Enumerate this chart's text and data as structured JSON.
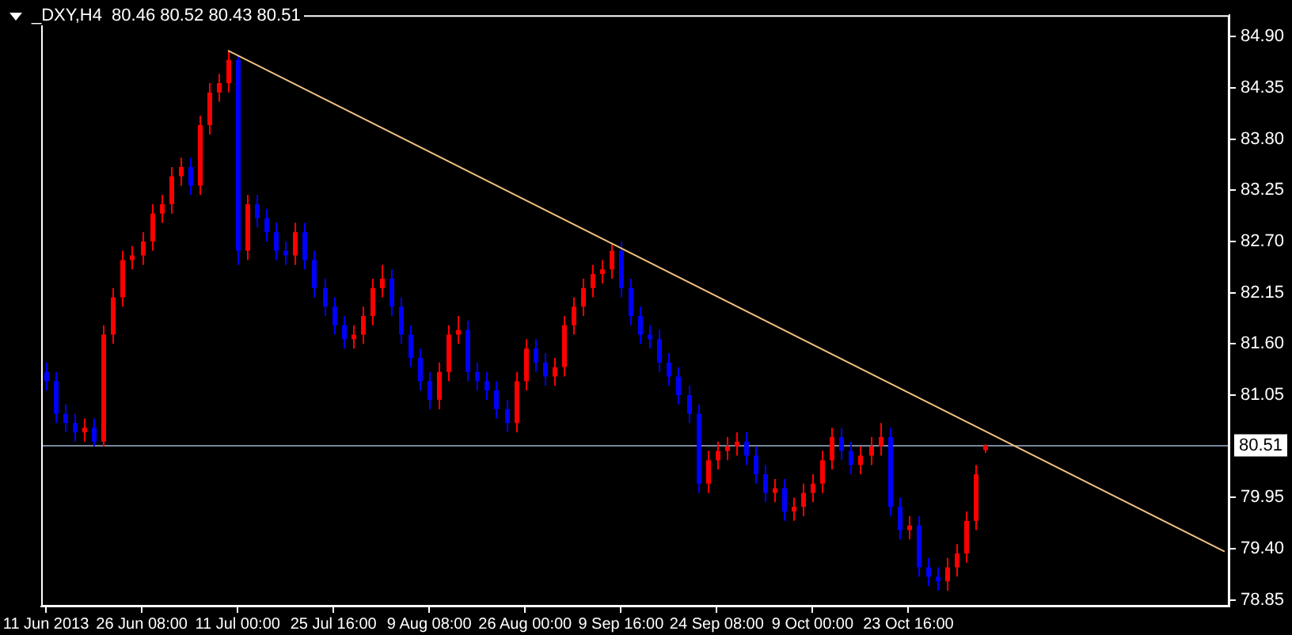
{
  "chart_data": {
    "type": "candlestick",
    "title": "_DXY,H4  80.46 80.52 80.43 80.51",
    "categories": [
      "11 Jun 2013",
      null,
      null,
      null,
      null,
      null,
      null,
      null,
      null,
      null,
      "26 Jun 08:00",
      null,
      null,
      null,
      null,
      null,
      null,
      null,
      null,
      null,
      "11 Jul 00:00",
      null,
      null,
      null,
      null,
      null,
      null,
      null,
      null,
      null,
      "25 Jul 16:00",
      null,
      null,
      null,
      null,
      null,
      null,
      null,
      null,
      null,
      "9 Aug 08:00",
      null,
      null,
      null,
      null,
      null,
      null,
      null,
      null,
      null,
      "26 Aug 00:00",
      null,
      null,
      null,
      null,
      null,
      null,
      null,
      null,
      null,
      "9 Sep 16:00",
      null,
      null,
      null,
      null,
      null,
      null,
      null,
      null,
      null,
      "24 Sep 08:00",
      null,
      null,
      null,
      null,
      null,
      null,
      null,
      null,
      null,
      "9 Oct 00:00",
      null,
      null,
      null,
      null,
      null,
      null,
      null,
      null,
      null,
      "23 Oct 16:00",
      null,
      null,
      null,
      null,
      null,
      null,
      null,
      null,
      null,
      null,
      null,
      null,
      null,
      null,
      null,
      null,
      null,
      null,
      null,
      null,
      null,
      null,
      null,
      null,
      null,
      null,
      null,
      null,
      null,
      null,
      null,
      null,
      null
    ],
    "ohlc": [
      [
        81.3,
        81.4,
        81.1,
        81.2
      ],
      [
        81.2,
        81.3,
        80.75,
        80.85
      ],
      [
        80.85,
        80.95,
        80.65,
        80.75
      ],
      [
        80.75,
        80.85,
        80.55,
        80.65
      ],
      [
        80.65,
        80.8,
        80.55,
        80.7
      ],
      [
        80.7,
        80.8,
        80.5,
        80.55
      ],
      [
        80.55,
        81.8,
        80.5,
        81.7
      ],
      [
        81.7,
        82.2,
        81.6,
        82.1
      ],
      [
        82.1,
        82.6,
        82.0,
        82.5
      ],
      [
        82.5,
        82.65,
        82.4,
        82.55
      ],
      [
        82.55,
        82.8,
        82.45,
        82.7
      ],
      [
        82.7,
        83.1,
        82.6,
        83.0
      ],
      [
        83.0,
        83.2,
        82.9,
        83.1
      ],
      [
        83.1,
        83.5,
        83.0,
        83.4
      ],
      [
        83.4,
        83.6,
        83.3,
        83.5
      ],
      [
        83.5,
        83.6,
        83.2,
        83.3
      ],
      [
        83.3,
        84.05,
        83.2,
        83.95
      ],
      [
        83.95,
        84.4,
        83.85,
        84.3
      ],
      [
        84.3,
        84.5,
        84.2,
        84.4
      ],
      [
        84.4,
        84.75,
        84.3,
        84.65
      ],
      [
        84.65,
        84.7,
        82.45,
        82.6
      ],
      [
        82.6,
        83.2,
        82.5,
        83.1
      ],
      [
        83.1,
        83.2,
        82.85,
        82.95
      ],
      [
        82.95,
        83.05,
        82.7,
        82.8
      ],
      [
        82.8,
        82.9,
        82.5,
        82.6
      ],
      [
        82.6,
        82.7,
        82.45,
        82.55
      ],
      [
        82.55,
        82.9,
        82.45,
        82.8
      ],
      [
        82.8,
        82.9,
        82.4,
        82.5
      ],
      [
        82.5,
        82.6,
        82.1,
        82.2
      ],
      [
        82.2,
        82.3,
        81.9,
        82.0
      ],
      [
        82.0,
        82.1,
        81.7,
        81.8
      ],
      [
        81.8,
        81.9,
        81.55,
        81.65
      ],
      [
        81.65,
        81.8,
        81.55,
        81.7
      ],
      [
        81.7,
        82.0,
        81.6,
        81.9
      ],
      [
        81.9,
        82.3,
        81.8,
        82.2
      ],
      [
        82.2,
        82.45,
        82.1,
        82.3
      ],
      [
        82.3,
        82.4,
        81.9,
        82.0
      ],
      [
        82.0,
        82.1,
        81.6,
        81.7
      ],
      [
        81.7,
        81.8,
        81.35,
        81.45
      ],
      [
        81.45,
        81.55,
        81.1,
        81.2
      ],
      [
        81.2,
        81.3,
        80.9,
        81.0
      ],
      [
        81.0,
        81.4,
        80.9,
        81.3
      ],
      [
        81.3,
        81.8,
        81.2,
        81.7
      ],
      [
        81.7,
        81.9,
        81.6,
        81.75
      ],
      [
        81.75,
        81.85,
        81.2,
        81.3
      ],
      [
        81.3,
        81.4,
        81.1,
        81.2
      ],
      [
        81.2,
        81.3,
        81.0,
        81.1
      ],
      [
        81.1,
        81.2,
        80.8,
        80.9
      ],
      [
        80.9,
        81.0,
        80.65,
        80.75
      ],
      [
        80.75,
        81.3,
        80.65,
        81.2
      ],
      [
        81.2,
        81.65,
        81.1,
        81.55
      ],
      [
        81.55,
        81.65,
        81.3,
        81.4
      ],
      [
        81.4,
        81.5,
        81.15,
        81.25
      ],
      [
        81.25,
        81.45,
        81.15,
        81.35
      ],
      [
        81.35,
        81.9,
        81.25,
        81.8
      ],
      [
        81.8,
        82.1,
        81.7,
        82.0
      ],
      [
        82.0,
        82.3,
        81.9,
        82.2
      ],
      [
        82.2,
        82.45,
        82.1,
        82.35
      ],
      [
        82.35,
        82.5,
        82.25,
        82.4
      ],
      [
        82.4,
        82.67,
        82.3,
        82.6
      ],
      [
        82.6,
        82.7,
        82.1,
        82.2
      ],
      [
        82.2,
        82.3,
        81.8,
        81.9
      ],
      [
        81.9,
        82.0,
        81.6,
        81.7
      ],
      [
        81.7,
        81.8,
        81.55,
        81.65
      ],
      [
        81.65,
        81.75,
        81.3,
        81.4
      ],
      [
        81.4,
        81.5,
        81.15,
        81.25
      ],
      [
        81.25,
        81.35,
        80.95,
        81.05
      ],
      [
        81.05,
        81.15,
        80.75,
        80.85
      ],
      [
        80.85,
        80.95,
        80.0,
        80.1
      ],
      [
        80.1,
        80.45,
        80.0,
        80.35
      ],
      [
        80.35,
        80.55,
        80.25,
        80.45
      ],
      [
        80.45,
        80.6,
        80.35,
        80.5
      ],
      [
        80.5,
        80.65,
        80.4,
        80.55
      ],
      [
        80.55,
        80.65,
        80.3,
        80.4
      ],
      [
        80.4,
        80.5,
        80.1,
        80.2
      ],
      [
        80.2,
        80.3,
        79.9,
        80.0
      ],
      [
        80.0,
        80.15,
        79.9,
        80.05
      ],
      [
        80.05,
        80.15,
        79.7,
        79.8
      ],
      [
        79.8,
        79.95,
        79.7,
        79.85
      ],
      [
        79.85,
        80.1,
        79.75,
        80.0
      ],
      [
        80.0,
        80.2,
        79.9,
        80.1
      ],
      [
        80.1,
        80.45,
        80.0,
        80.35
      ],
      [
        80.35,
        80.7,
        80.25,
        80.6
      ],
      [
        80.6,
        80.7,
        80.35,
        80.45
      ],
      [
        80.45,
        80.55,
        80.2,
        80.3
      ],
      [
        80.3,
        80.5,
        80.2,
        80.4
      ],
      [
        80.4,
        80.6,
        80.3,
        80.5
      ],
      [
        80.5,
        80.75,
        80.4,
        80.6
      ],
      [
        80.6,
        80.7,
        79.75,
        79.85
      ],
      [
        79.85,
        79.95,
        79.5,
        79.6
      ],
      [
        79.6,
        79.75,
        79.5,
        79.65
      ],
      [
        79.65,
        79.75,
        79.1,
        79.2
      ],
      [
        79.2,
        79.3,
        79.0,
        79.1
      ],
      [
        79.1,
        79.2,
        78.95,
        79.05
      ],
      [
        79.05,
        79.3,
        78.95,
        79.2
      ],
      [
        79.2,
        79.45,
        79.1,
        79.35
      ],
      [
        79.35,
        79.8,
        79.25,
        79.7
      ],
      [
        79.7,
        80.3,
        79.6,
        80.2
      ],
      [
        80.46,
        80.52,
        80.43,
        80.51
      ],
      null,
      null,
      null,
      null,
      null,
      null,
      null,
      null,
      null,
      null,
      null,
      null,
      null,
      null,
      null,
      null,
      null,
      null,
      null,
      null,
      null,
      null,
      null,
      null,
      null
    ],
    "colors": [
      "#0000ff",
      "#0000ff",
      "#0000ff",
      "#0000ff",
      "#ff0000",
      "#0000ff",
      "#ff0000",
      "#ff0000",
      "#ff0000",
      "#ff0000",
      "#ff0000",
      "#ff0000",
      "#ff0000",
      "#ff0000",
      "#ff0000",
      "#0000ff",
      "#ff0000",
      "#ff0000",
      "#ff0000",
      "#ff0000",
      "#0000ff",
      "#ff0000",
      "#0000ff",
      "#0000ff",
      "#0000ff",
      "#0000ff",
      "#ff0000",
      "#0000ff",
      "#0000ff",
      "#0000ff",
      "#0000ff",
      "#0000ff",
      "#ff0000",
      "#ff0000",
      "#ff0000",
      "#ff0000",
      "#0000ff",
      "#0000ff",
      "#0000ff",
      "#0000ff",
      "#0000ff",
      "#ff0000",
      "#ff0000",
      "#ff0000",
      "#0000ff",
      "#0000ff",
      "#0000ff",
      "#0000ff",
      "#0000ff",
      "#ff0000",
      "#ff0000",
      "#0000ff",
      "#0000ff",
      "#ff0000",
      "#ff0000",
      "#ff0000",
      "#ff0000",
      "#ff0000",
      "#ff0000",
      "#ff0000",
      "#0000ff",
      "#0000ff",
      "#0000ff",
      "#0000ff",
      "#0000ff",
      "#0000ff",
      "#0000ff",
      "#0000ff",
      "#0000ff",
      "#ff0000",
      "#ff0000",
      "#ff0000",
      "#ff0000",
      "#0000ff",
      "#0000ff",
      "#0000ff",
      "#ff0000",
      "#0000ff",
      "#ff0000",
      "#ff0000",
      "#ff0000",
      "#ff0000",
      "#ff0000",
      "#0000ff",
      "#0000ff",
      "#ff0000",
      "#ff0000",
      "#ff0000",
      "#0000ff",
      "#0000ff",
      "#ff0000",
      "#0000ff",
      "#0000ff",
      "#0000ff",
      "#ff0000",
      "#ff0000",
      "#ff0000",
      "#ff0000",
      "#ff0000",
      null,
      null,
      null,
      null,
      null,
      null,
      null,
      null,
      null,
      null,
      null,
      null,
      null,
      null,
      null,
      null,
      null,
      null,
      null,
      null,
      null,
      null,
      null,
      null,
      null
    ],
    "series": [
      {
        "type": "line",
        "color": "#f0c080",
        "values": [
          null,
          null,
          null,
          null,
          null,
          null,
          null,
          null,
          null,
          null,
          null,
          null,
          null,
          null,
          null,
          null,
          null,
          null,
          null,
          84.75,
          null,
          null,
          null,
          null,
          null,
          null,
          null,
          null,
          null,
          null,
          null,
          null,
          null,
          null,
          null,
          null,
          null,
          null,
          null,
          null,
          null,
          null,
          null,
          null,
          null,
          null,
          null,
          null,
          null,
          null,
          null,
          null,
          null,
          null,
          null,
          null,
          null,
          null,
          null,
          null,
          null,
          null,
          null,
          null,
          null,
          null,
          null,
          null,
          null,
          null,
          null,
          null,
          null,
          null,
          null,
          null,
          null,
          null,
          null,
          null,
          null,
          null,
          null,
          null,
          null,
          null,
          null,
          null,
          null,
          null,
          null,
          null,
          null,
          null,
          null,
          null,
          null,
          null,
          null,
          null,
          null,
          null,
          null,
          null,
          null,
          null,
          null,
          null,
          null,
          null,
          null,
          null,
          null,
          null,
          null,
          null,
          null,
          null,
          null,
          null,
          null,
          null,
          null,
          79.37
        ]
      }
    ],
    "ylim": [
      78.78,
      85.13
    ],
    "yticks": [
      {
        "value": 84.9,
        "label": "84.90"
      },
      {
        "value": 84.35,
        "label": "84.35"
      },
      {
        "value": 83.8,
        "label": "83.80"
      },
      {
        "value": 83.25,
        "label": "83.25"
      },
      {
        "value": 82.7,
        "label": "82.70"
      },
      {
        "value": 82.15,
        "label": "82.15"
      },
      {
        "value": 81.6,
        "label": "81.60"
      },
      {
        "value": 81.05,
        "label": "81.05"
      },
      {
        "value": 79.95,
        "label": "79.95"
      },
      {
        "value": 79.4,
        "label": "79.40"
      },
      {
        "value": 78.85,
        "label": "78.85"
      }
    ],
    "ref_lines": [
      {
        "axis": "y",
        "value": 80.51,
        "label": "80.51",
        "color": "#778899"
      }
    ]
  }
}
